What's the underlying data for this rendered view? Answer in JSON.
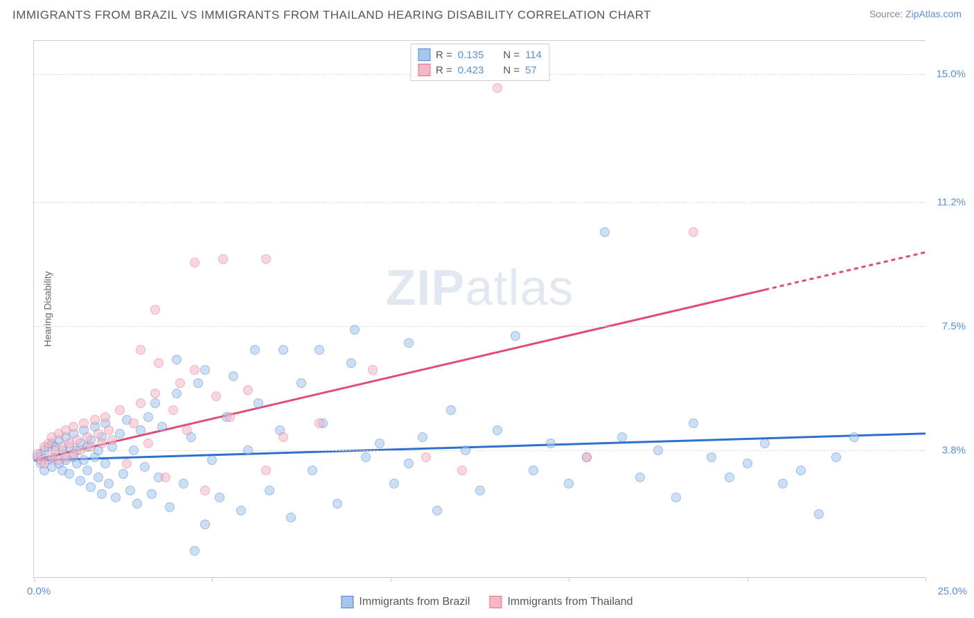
{
  "header": {
    "title": "IMMIGRANTS FROM BRAZIL VS IMMIGRANTS FROM THAILAND HEARING DISABILITY CORRELATION CHART",
    "source_prefix": "Source: ",
    "source_link": "ZipAtlas.com"
  },
  "chart": {
    "type": "scatter",
    "ylabel": "Hearing Disability",
    "xlim": [
      0,
      25
    ],
    "ylim": [
      0,
      16
    ],
    "x_min_label": "0.0%",
    "x_max_label": "25.0%",
    "xtick_positions": [
      0,
      5,
      10,
      15,
      20,
      25
    ],
    "ygrid": [
      {
        "v": 3.8,
        "label": "3.8%"
      },
      {
        "v": 7.5,
        "label": "7.5%"
      },
      {
        "v": 11.2,
        "label": "11.2%"
      },
      {
        "v": 15.0,
        "label": "15.0%"
      }
    ],
    "background_color": "#ffffff",
    "grid_color": "#dddddd",
    "axis_color": "#cccccc",
    "tick_label_color": "#5b8fd6",
    "watermark": "ZIPatlas",
    "marker_radius": 7,
    "marker_opacity": 0.55,
    "series": [
      {
        "name": "Immigrants from Brazil",
        "fill": "#a6c6ec",
        "stroke": "#4a86d8",
        "trend_color": "#2f6fd0",
        "trend_width": 3,
        "trend": {
          "x1": 0,
          "y1": 3.5,
          "x2": 25,
          "y2": 4.3,
          "dash_after_x": 25
        },
        "R": "0.135",
        "N": "114",
        "points": [
          [
            0.1,
            3.6
          ],
          [
            0.2,
            3.7
          ],
          [
            0.2,
            3.4
          ],
          [
            0.3,
            3.8
          ],
          [
            0.3,
            3.2
          ],
          [
            0.4,
            3.9
          ],
          [
            0.4,
            3.5
          ],
          [
            0.5,
            3.3
          ],
          [
            0.5,
            4.0
          ],
          [
            0.6,
            3.6
          ],
          [
            0.6,
            3.9
          ],
          [
            0.7,
            3.4
          ],
          [
            0.7,
            4.1
          ],
          [
            0.8,
            3.2
          ],
          [
            0.8,
            3.8
          ],
          [
            0.9,
            3.5
          ],
          [
            0.9,
            4.2
          ],
          [
            1.0,
            3.1
          ],
          [
            1.0,
            3.9
          ],
          [
            1.1,
            3.6
          ],
          [
            1.1,
            4.3
          ],
          [
            1.2,
            3.4
          ],
          [
            1.2,
            3.8
          ],
          [
            1.3,
            2.9
          ],
          [
            1.3,
            4.0
          ],
          [
            1.4,
            3.5
          ],
          [
            1.4,
            4.4
          ],
          [
            1.5,
            3.2
          ],
          [
            1.5,
            3.9
          ],
          [
            1.6,
            2.7
          ],
          [
            1.6,
            4.1
          ],
          [
            1.7,
            3.6
          ],
          [
            1.7,
            4.5
          ],
          [
            1.8,
            3.0
          ],
          [
            1.8,
            3.8
          ],
          [
            1.9,
            2.5
          ],
          [
            1.9,
            4.2
          ],
          [
            2.0,
            3.4
          ],
          [
            2.0,
            4.6
          ],
          [
            2.1,
            2.8
          ],
          [
            2.2,
            3.9
          ],
          [
            2.3,
            2.4
          ],
          [
            2.4,
            4.3
          ],
          [
            2.5,
            3.1
          ],
          [
            2.6,
            4.7
          ],
          [
            2.7,
            2.6
          ],
          [
            2.8,
            3.8
          ],
          [
            2.9,
            2.2
          ],
          [
            3.0,
            4.4
          ],
          [
            3.1,
            3.3
          ],
          [
            3.2,
            4.8
          ],
          [
            3.3,
            2.5
          ],
          [
            3.4,
            5.2
          ],
          [
            3.5,
            3.0
          ],
          [
            3.6,
            4.5
          ],
          [
            3.8,
            2.1
          ],
          [
            4.0,
            5.5
          ],
          [
            4.2,
            2.8
          ],
          [
            4.4,
            4.2
          ],
          [
            4.6,
            5.8
          ],
          [
            4.8,
            1.6
          ],
          [
            4.8,
            6.2
          ],
          [
            5.0,
            3.5
          ],
          [
            5.2,
            2.4
          ],
          [
            5.4,
            4.8
          ],
          [
            5.6,
            6.0
          ],
          [
            5.8,
            2.0
          ],
          [
            6.0,
            3.8
          ],
          [
            6.3,
            5.2
          ],
          [
            6.6,
            2.6
          ],
          [
            6.9,
            4.4
          ],
          [
            7.2,
            1.8
          ],
          [
            7.5,
            5.8
          ],
          [
            7.8,
            3.2
          ],
          [
            8.1,
            4.6
          ],
          [
            8.5,
            2.2
          ],
          [
            8.9,
            6.4
          ],
          [
            9.3,
            3.6
          ],
          [
            9.7,
            4.0
          ],
          [
            10.1,
            2.8
          ],
          [
            10.5,
            7.0
          ],
          [
            10.5,
            3.4
          ],
          [
            10.9,
            4.2
          ],
          [
            11.3,
            2.0
          ],
          [
            11.7,
            5.0
          ],
          [
            12.1,
            3.8
          ],
          [
            12.5,
            2.6
          ],
          [
            13.0,
            4.4
          ],
          [
            13.5,
            7.2
          ],
          [
            14.0,
            3.2
          ],
          [
            14.5,
            4.0
          ],
          [
            15.0,
            2.8
          ],
          [
            15.5,
            3.6
          ],
          [
            16.0,
            10.3
          ],
          [
            16.5,
            4.2
          ],
          [
            17.0,
            3.0
          ],
          [
            17.5,
            3.8
          ],
          [
            18.0,
            2.4
          ],
          [
            18.5,
            4.6
          ],
          [
            19.0,
            3.6
          ],
          [
            19.5,
            3.0
          ],
          [
            20.0,
            3.4
          ],
          [
            20.5,
            4.0
          ],
          [
            21.0,
            2.8
          ],
          [
            21.5,
            3.2
          ],
          [
            22.0,
            1.9
          ],
          [
            22.5,
            3.6
          ],
          [
            23.0,
            4.2
          ],
          [
            4.5,
            0.8
          ],
          [
            6.2,
            6.8
          ],
          [
            4.0,
            6.5
          ],
          [
            7.0,
            6.8
          ],
          [
            8.0,
            6.8
          ],
          [
            9.0,
            7.4
          ]
        ]
      },
      {
        "name": "Immigrants from Thailand",
        "fill": "#f4b8c5",
        "stroke": "#e6718f",
        "trend_color": "#e04b78",
        "trend_width": 3,
        "trend": {
          "x1": 0,
          "y1": 3.5,
          "x2": 25,
          "y2": 9.7,
          "dash_after_x": 20.5
        },
        "R": "0.423",
        "N": "57",
        "points": [
          [
            0.1,
            3.7
          ],
          [
            0.2,
            3.5
          ],
          [
            0.3,
            3.9
          ],
          [
            0.3,
            3.4
          ],
          [
            0.4,
            4.0
          ],
          [
            0.5,
            3.6
          ],
          [
            0.5,
            4.2
          ],
          [
            0.6,
            3.8
          ],
          [
            0.7,
            3.5
          ],
          [
            0.7,
            4.3
          ],
          [
            0.8,
            3.9
          ],
          [
            0.9,
            3.6
          ],
          [
            0.9,
            4.4
          ],
          [
            1.0,
            4.0
          ],
          [
            1.1,
            3.7
          ],
          [
            1.1,
            4.5
          ],
          [
            1.2,
            4.1
          ],
          [
            1.3,
            3.8
          ],
          [
            1.4,
            4.6
          ],
          [
            1.5,
            4.2
          ],
          [
            1.6,
            3.9
          ],
          [
            1.7,
            4.7
          ],
          [
            1.8,
            4.3
          ],
          [
            1.9,
            4.0
          ],
          [
            2.0,
            4.8
          ],
          [
            2.1,
            4.4
          ],
          [
            2.2,
            4.1
          ],
          [
            2.4,
            5.0
          ],
          [
            2.6,
            3.4
          ],
          [
            2.8,
            4.6
          ],
          [
            3.0,
            5.2
          ],
          [
            3.2,
            4.0
          ],
          [
            3.4,
            5.5
          ],
          [
            3.5,
            6.4
          ],
          [
            3.7,
            3.0
          ],
          [
            3.9,
            5.0
          ],
          [
            4.1,
            5.8
          ],
          [
            4.3,
            4.4
          ],
          [
            4.5,
            6.2
          ],
          [
            4.8,
            2.6
          ],
          [
            5.1,
            5.4
          ],
          [
            5.5,
            4.8
          ],
          [
            6.0,
            5.6
          ],
          [
            6.5,
            3.2
          ],
          [
            7.0,
            4.2
          ],
          [
            8.0,
            4.6
          ],
          [
            9.5,
            6.2
          ],
          [
            11.0,
            3.6
          ],
          [
            12.0,
            3.2
          ],
          [
            3.0,
            6.8
          ],
          [
            3.4,
            8.0
          ],
          [
            4.5,
            9.4
          ],
          [
            5.3,
            9.5
          ],
          [
            6.5,
            9.5
          ],
          [
            13.0,
            14.6
          ],
          [
            15.5,
            3.6
          ],
          [
            18.5,
            10.3
          ]
        ]
      }
    ]
  },
  "legend_top": {
    "R_label": "R  =",
    "N_label": "N  ="
  },
  "legend_bottom": {}
}
